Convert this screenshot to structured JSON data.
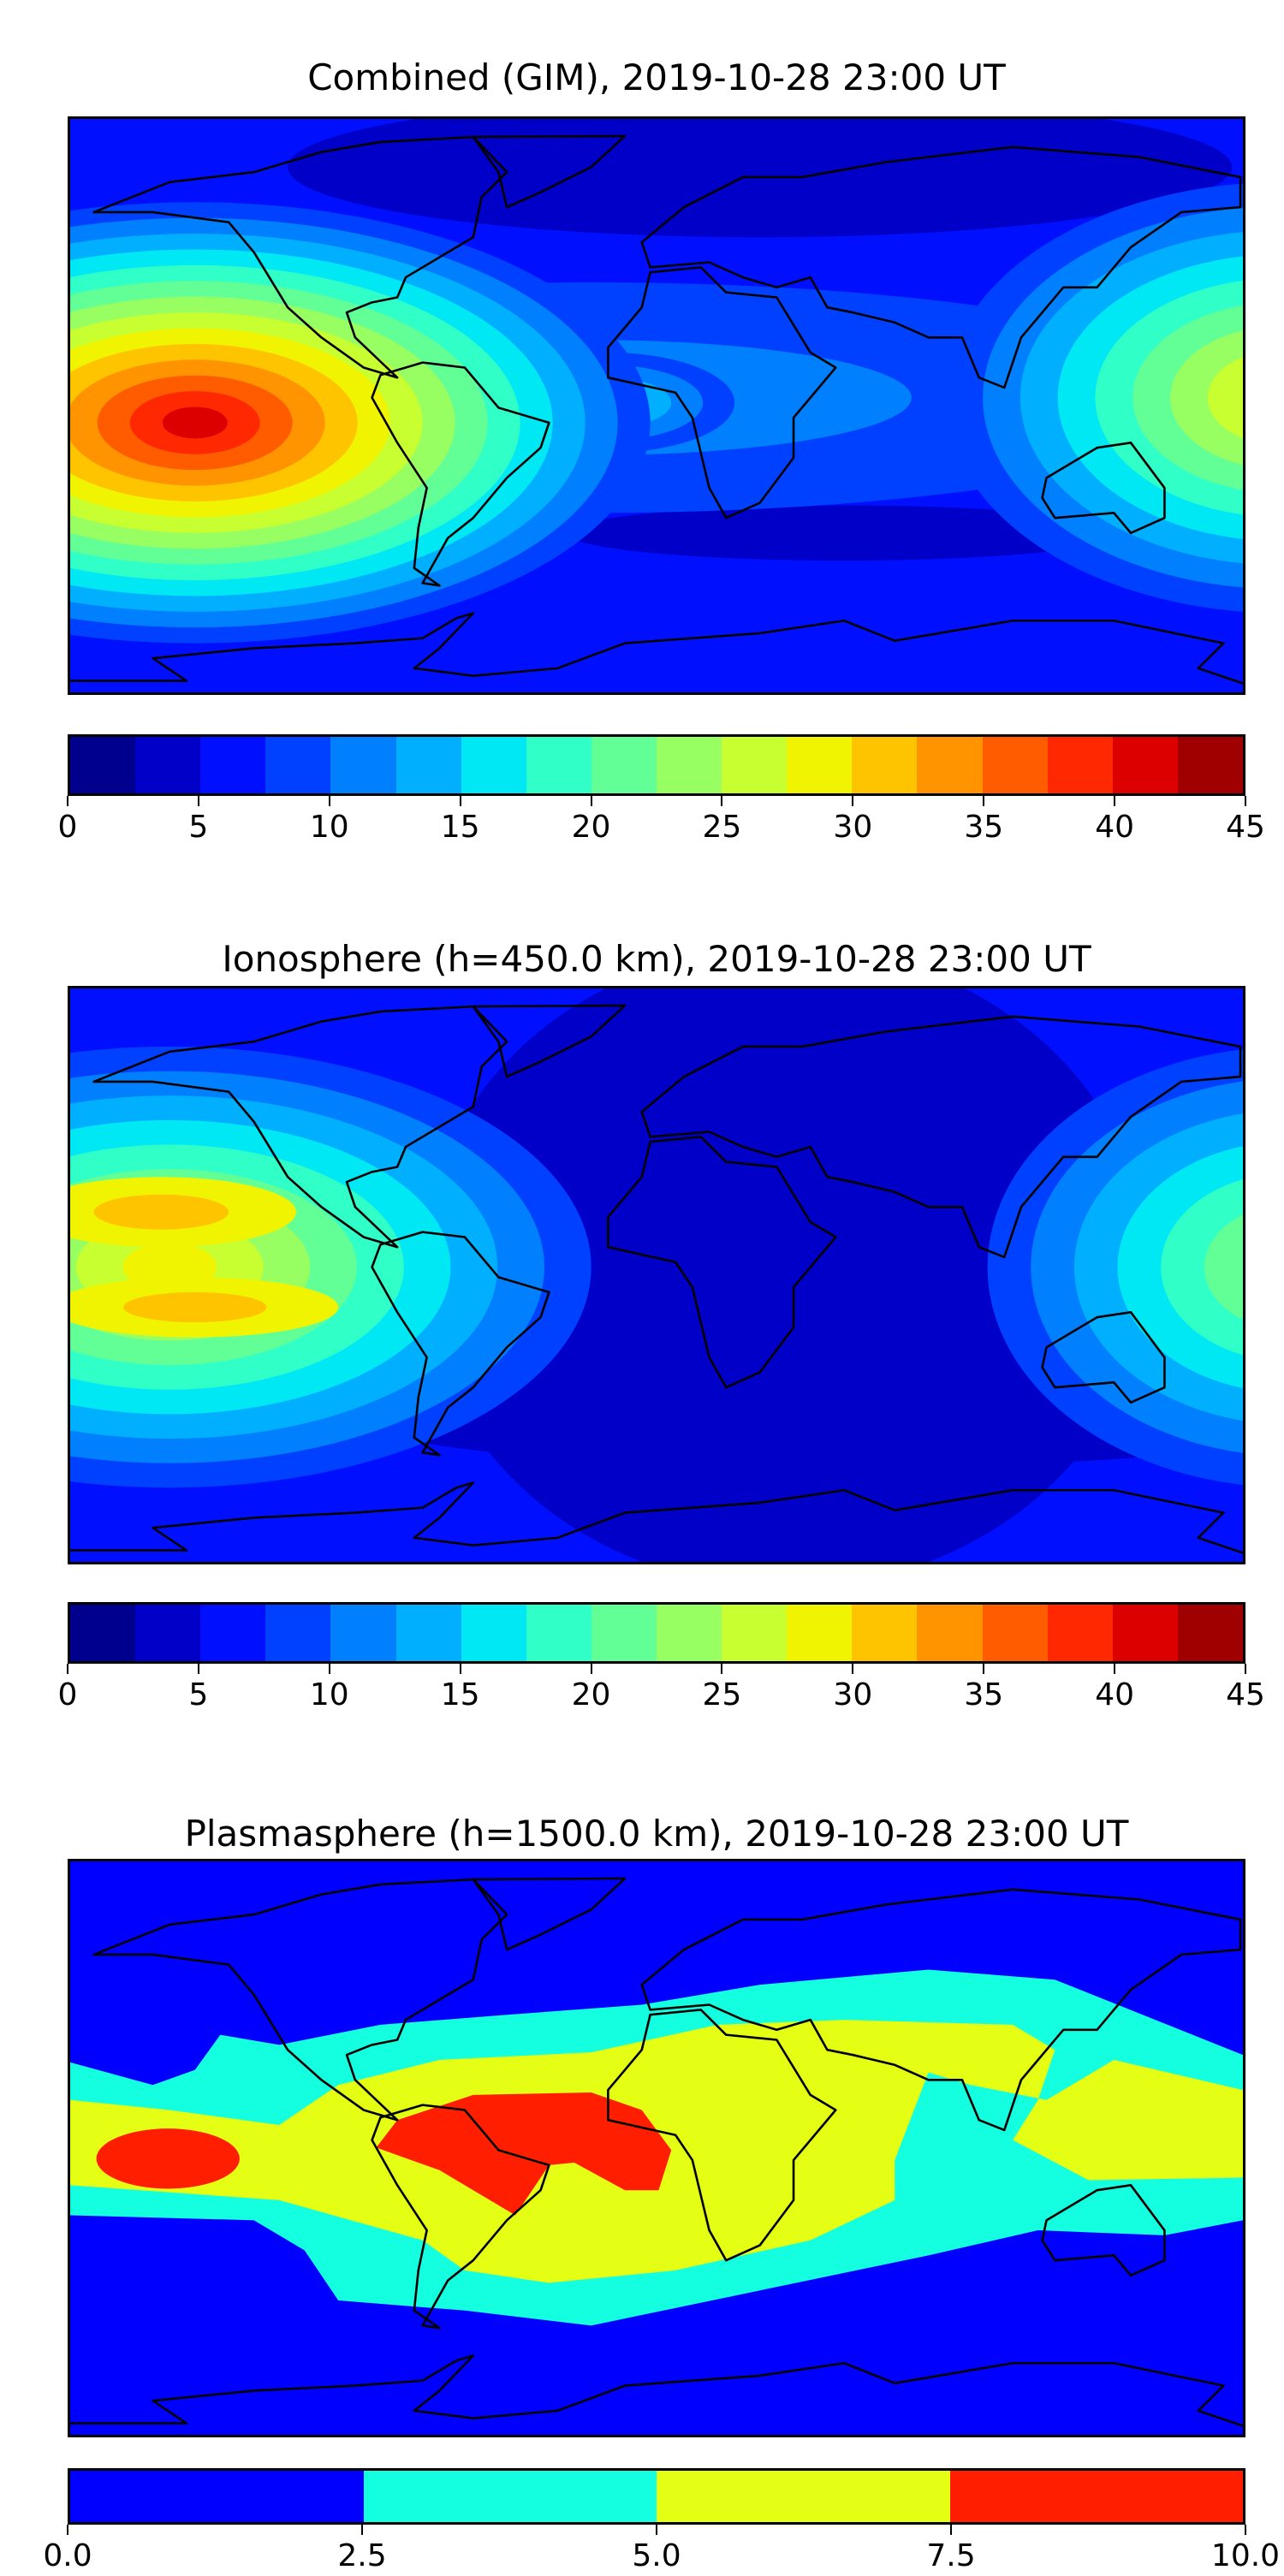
{
  "chart_data": [
    {
      "type": "heatmap",
      "subtype": "filled-contour-map",
      "title": "Combined (GIM), 2019-10-28 23:00 UT",
      "colorbar": {
        "levels": [
          0,
          2.5,
          5,
          7.5,
          10,
          12.5,
          15,
          17.5,
          20,
          22.5,
          25,
          27.5,
          30,
          32.5,
          35,
          37.5,
          40,
          42.5,
          45
        ],
        "colors": [
          "#00008f",
          "#0000c8",
          "#0010ff",
          "#0040ff",
          "#0080ff",
          "#00b0ff",
          "#00e8f4",
          "#30ffc8",
          "#62ff96",
          "#98ff62",
          "#c8ff30",
          "#f0f400",
          "#ffc400",
          "#ff9400",
          "#ff5c00",
          "#ff2800",
          "#dc0000",
          "#a00000"
        ],
        "ticks": [
          0,
          5,
          10,
          15,
          20,
          25,
          30,
          35,
          40,
          45
        ],
        "tick_labels": [
          "0",
          "5",
          "10",
          "15",
          "20",
          "25",
          "30",
          "35",
          "40",
          "45"
        ]
      }
    },
    {
      "type": "heatmap",
      "subtype": "filled-contour-map",
      "title": "Ionosphere  (h=450.0 km), 2019-10-28 23:00 UT",
      "colorbar": {
        "levels": [
          0,
          2.5,
          5,
          7.5,
          10,
          12.5,
          15,
          17.5,
          20,
          22.5,
          25,
          27.5,
          30,
          32.5,
          35,
          37.5,
          40,
          42.5,
          45
        ],
        "colors": [
          "#00008f",
          "#0000c8",
          "#0010ff",
          "#0040ff",
          "#0080ff",
          "#00b0ff",
          "#00e8f4",
          "#30ffc8",
          "#62ff96",
          "#98ff62",
          "#c8ff30",
          "#f0f400",
          "#ffc400",
          "#ff9400",
          "#ff5c00",
          "#ff2800",
          "#dc0000",
          "#a00000"
        ],
        "ticks": [
          0,
          5,
          10,
          15,
          20,
          25,
          30,
          35,
          40,
          45
        ],
        "tick_labels": [
          "0",
          "5",
          "10",
          "15",
          "20",
          "25",
          "30",
          "35",
          "40",
          "45"
        ]
      }
    },
    {
      "type": "heatmap",
      "subtype": "filled-contour-map",
      "title": "Plasmasphere (h=1500.0 km), 2019-10-28 23:00 UT",
      "colorbar": {
        "levels": [
          0,
          2.5,
          5,
          7.5,
          10
        ],
        "colors": [
          "#0000ff",
          "#14ffe0",
          "#e4ff14",
          "#ff1e00"
        ],
        "ticks": [
          0,
          2.5,
          5,
          7.5,
          10
        ],
        "tick_labels": [
          "0.0",
          "2.5",
          "5.0",
          "7.5",
          "10.0"
        ]
      }
    }
  ]
}
